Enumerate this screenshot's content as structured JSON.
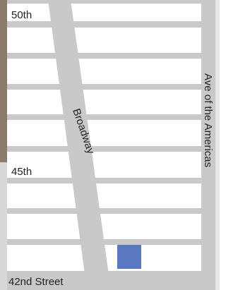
{
  "streets": {
    "top": "50th",
    "middle": "45th",
    "bottom": "42nd Street",
    "diagonal": "Broadway",
    "avenue": "Ave of the Americas"
  }
}
